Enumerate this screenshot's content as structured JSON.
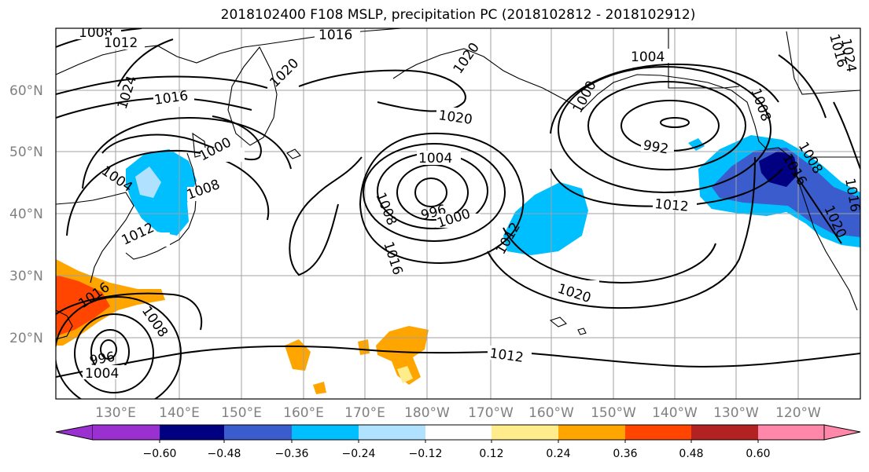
{
  "title": "2018102400 F108 MSLP, precipitation PC (2018102812 - 2018102912)",
  "lat_labels": [
    {
      "text": "60°N",
      "lat": 60
    },
    {
      "text": "50°N",
      "lat": 50
    },
    {
      "text": "40°N",
      "lat": 40
    },
    {
      "text": "30°N",
      "lat": 30
    },
    {
      "text": "20°N",
      "lat": 20
    }
  ],
  "lon_labels": [
    {
      "text": "130°E",
      "lon": 130
    },
    {
      "text": "140°E",
      "lon": 140
    },
    {
      "text": "150°E",
      "lon": 150
    },
    {
      "text": "160°E",
      "lon": 160
    },
    {
      "text": "170°E",
      "lon": 170
    },
    {
      "text": "180°W",
      "lon": 180
    },
    {
      "text": "170°W",
      "lon": 190
    },
    {
      "text": "160°W",
      "lon": 200
    },
    {
      "text": "150°W",
      "lon": 210
    },
    {
      "text": "140°W",
      "lon": 220
    },
    {
      "text": "130°W",
      "lon": 230
    },
    {
      "text": "120°W",
      "lon": 240
    }
  ],
  "colorbar": {
    "ticks": [
      "−0.60",
      "−0.48",
      "−0.36",
      "−0.24",
      "−0.12",
      "0.12",
      "0.24",
      "0.36",
      "0.48",
      "0.60"
    ],
    "colors": [
      "#9b30d0",
      "#000080",
      "#3a5ccc",
      "#00bfff",
      "#b0e2ff",
      "#ffffff",
      "#ffec8b",
      "#ffa500",
      "#ff4500",
      "#b22222",
      "#ff88aa"
    ]
  },
  "contour_labels": [
    {
      "text": "1008"
    },
    {
      "text": "1012"
    },
    {
      "text": "1016"
    },
    {
      "text": "1024"
    },
    {
      "text": "1016"
    },
    {
      "text": "1020"
    },
    {
      "text": "1020"
    },
    {
      "text": "1004"
    },
    {
      "text": "1008"
    },
    {
      "text": "1016"
    },
    {
      "text": "1020"
    },
    {
      "text": "1000"
    },
    {
      "text": "1008"
    },
    {
      "text": "1012"
    },
    {
      "text": "1004"
    },
    {
      "text": "996"
    },
    {
      "text": "1000"
    },
    {
      "text": "1008"
    },
    {
      "text": "1016"
    },
    {
      "text": "1012"
    },
    {
      "text": "1016"
    },
    {
      "text": "1008"
    },
    {
      "text": "1004"
    },
    {
      "text": "996"
    },
    {
      "text": "1012"
    },
    {
      "text": "1020"
    },
    {
      "text": "1012"
    },
    {
      "text": "1004"
    },
    {
      "text": "1000"
    },
    {
      "text": "992"
    },
    {
      "text": "1008"
    },
    {
      "text": "1016"
    },
    {
      "text": "1016"
    },
    {
      "text": "1020"
    },
    {
      "text": "1024"
    }
  ]
}
